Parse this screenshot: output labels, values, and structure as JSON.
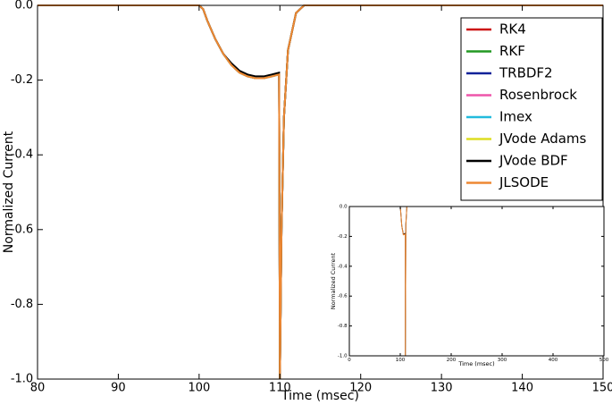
{
  "chart_data": [
    {
      "type": "line",
      "xlabel": "Time (msec)",
      "ylabel": "Normalized Current",
      "xlim": [
        80,
        150
      ],
      "ylim": [
        -1,
        0
      ],
      "xticks": [
        80,
        90,
        100,
        110,
        120,
        130,
        140,
        150
      ],
      "yticks": [
        {
          "value": -1,
          "label": "-1.0"
        },
        -0.8,
        -0.6,
        -0.4,
        -0.2,
        {
          "value": 0,
          "label": "0.0"
        }
      ],
      "legend": "upper right",
      "x": [
        80,
        100,
        100.5,
        101,
        102,
        103,
        104,
        105,
        106,
        107,
        108,
        109,
        109.9,
        110,
        110.2,
        110.5,
        111,
        112,
        113,
        150
      ],
      "series": [
        {
          "name": "RK4",
          "color": "#cc1111",
          "values": [
            0,
            0,
            -0.01,
            -0.04,
            -0.09,
            -0.13,
            -0.16,
            -0.18,
            -0.19,
            -0.195,
            -0.195,
            -0.19,
            -0.185,
            -1,
            -0.6,
            -0.3,
            -0.12,
            -0.02,
            0,
            0
          ]
        },
        {
          "name": "RKF",
          "color": "#229922",
          "values": [
            0,
            0,
            -0.01,
            -0.04,
            -0.09,
            -0.13,
            -0.16,
            -0.18,
            -0.19,
            -0.195,
            -0.195,
            -0.19,
            -0.185,
            -1,
            -0.6,
            -0.3,
            -0.12,
            -0.02,
            0,
            0
          ]
        },
        {
          "name": "TRBDF2",
          "color": "#112299",
          "values": [
            0,
            0,
            -0.01,
            -0.04,
            -0.09,
            -0.13,
            -0.16,
            -0.18,
            -0.19,
            -0.195,
            -0.195,
            -0.19,
            -0.185,
            -1,
            -0.6,
            -0.3,
            -0.12,
            -0.02,
            0,
            0
          ]
        },
        {
          "name": "Rosenbrock",
          "color": "#ee55aa",
          "values": [
            0,
            0,
            -0.01,
            -0.04,
            -0.09,
            -0.13,
            -0.16,
            -0.18,
            -0.19,
            -0.195,
            -0.195,
            -0.19,
            -0.185,
            -1,
            -0.6,
            -0.3,
            -0.12,
            -0.02,
            0,
            0
          ]
        },
        {
          "name": "Imex",
          "color": "#22bbdd",
          "values": [
            0,
            0,
            -0.01,
            -0.04,
            -0.09,
            -0.13,
            -0.16,
            -0.18,
            -0.19,
            -0.195,
            -0.195,
            -0.19,
            -0.185,
            -1,
            -0.6,
            -0.3,
            -0.12,
            -0.02,
            0,
            0
          ]
        },
        {
          "name": "JVode Adams",
          "color": "#dddd22",
          "values": [
            0,
            0,
            -0.01,
            -0.04,
            -0.09,
            -0.13,
            -0.16,
            -0.18,
            -0.19,
            -0.195,
            -0.195,
            -0.19,
            -0.185,
            -1,
            -0.6,
            -0.3,
            -0.12,
            -0.02,
            0,
            0
          ]
        },
        {
          "name": "JVode BDF",
          "color": "#000000",
          "values": [
            0,
            0,
            -0.01,
            -0.04,
            -0.09,
            -0.13,
            -0.155,
            -0.175,
            -0.185,
            -0.19,
            -0.19,
            -0.185,
            -0.18,
            -1,
            -0.6,
            -0.3,
            -0.12,
            -0.02,
            0,
            0
          ]
        },
        {
          "name": "JLSODE",
          "color": "#ee8833",
          "values": [
            0,
            0,
            -0.01,
            -0.04,
            -0.09,
            -0.13,
            -0.16,
            -0.18,
            -0.19,
            -0.195,
            -0.195,
            -0.19,
            -0.185,
            -1,
            -0.6,
            -0.3,
            -0.12,
            -0.02,
            0,
            0
          ]
        }
      ]
    },
    {
      "type": "line",
      "xlabel": "Time (msec)",
      "ylabel": "Normalized Current",
      "xlim": [
        0,
        500
      ],
      "ylim": [
        -1,
        0
      ],
      "xticks": [
        0,
        100,
        200,
        300,
        400,
        500
      ],
      "yticks": [
        {
          "value": -1,
          "label": "-1.0"
        },
        -0.8,
        -0.6,
        -0.4,
        -0.2,
        {
          "value": 0,
          "label": "0.0"
        }
      ],
      "x": [
        0,
        100,
        101,
        103,
        106,
        109.9,
        110,
        111,
        113,
        500
      ],
      "series": [
        {
          "color": "#000000",
          "values": [
            0,
            0,
            -0.04,
            -0.13,
            -0.185,
            -0.18,
            -1,
            -0.12,
            0,
            0
          ]
        },
        {
          "color": "#ee8833",
          "values": [
            0,
            0,
            -0.04,
            -0.13,
            -0.19,
            -0.185,
            -1,
            -0.12,
            0,
            0
          ]
        }
      ]
    }
  ]
}
